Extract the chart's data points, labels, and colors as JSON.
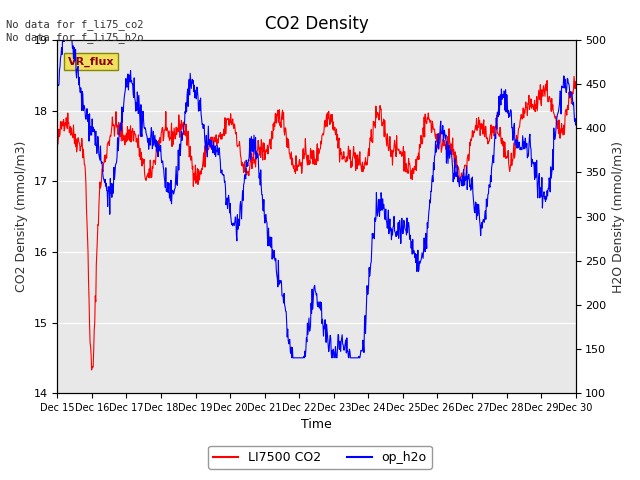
{
  "title": "CO2 Density",
  "xlabel": "Time",
  "ylabel_left": "CO2 Density (mmol/m3)",
  "ylabel_right": "H2O Density (mmol/m3)",
  "ylim_left": [
    14.0,
    19.0
  ],
  "ylim_right": [
    100,
    500
  ],
  "annotation_top_left": "No data for f_li75_co2\nNo data for f_li75_h2o",
  "vr_flux_label": "VR_flux",
  "legend_entries": [
    "LI7500 CO2",
    "op_h2o"
  ],
  "legend_colors": [
    "red",
    "blue"
  ],
  "background_color": "#e8e8e8",
  "fig_background": "#ffffff",
  "x_tick_labels": [
    "Dec 15",
    "Dec 16",
    "Dec 17",
    "Dec 18",
    "Dec 19",
    "Dec 20",
    "Dec 21",
    "Dec 22",
    "Dec 23",
    "Dec 24",
    "Dec 25",
    "Dec 26",
    "Dec 27",
    "Dec 28",
    "Dec 29",
    "Dec 30"
  ],
  "seed": 42
}
